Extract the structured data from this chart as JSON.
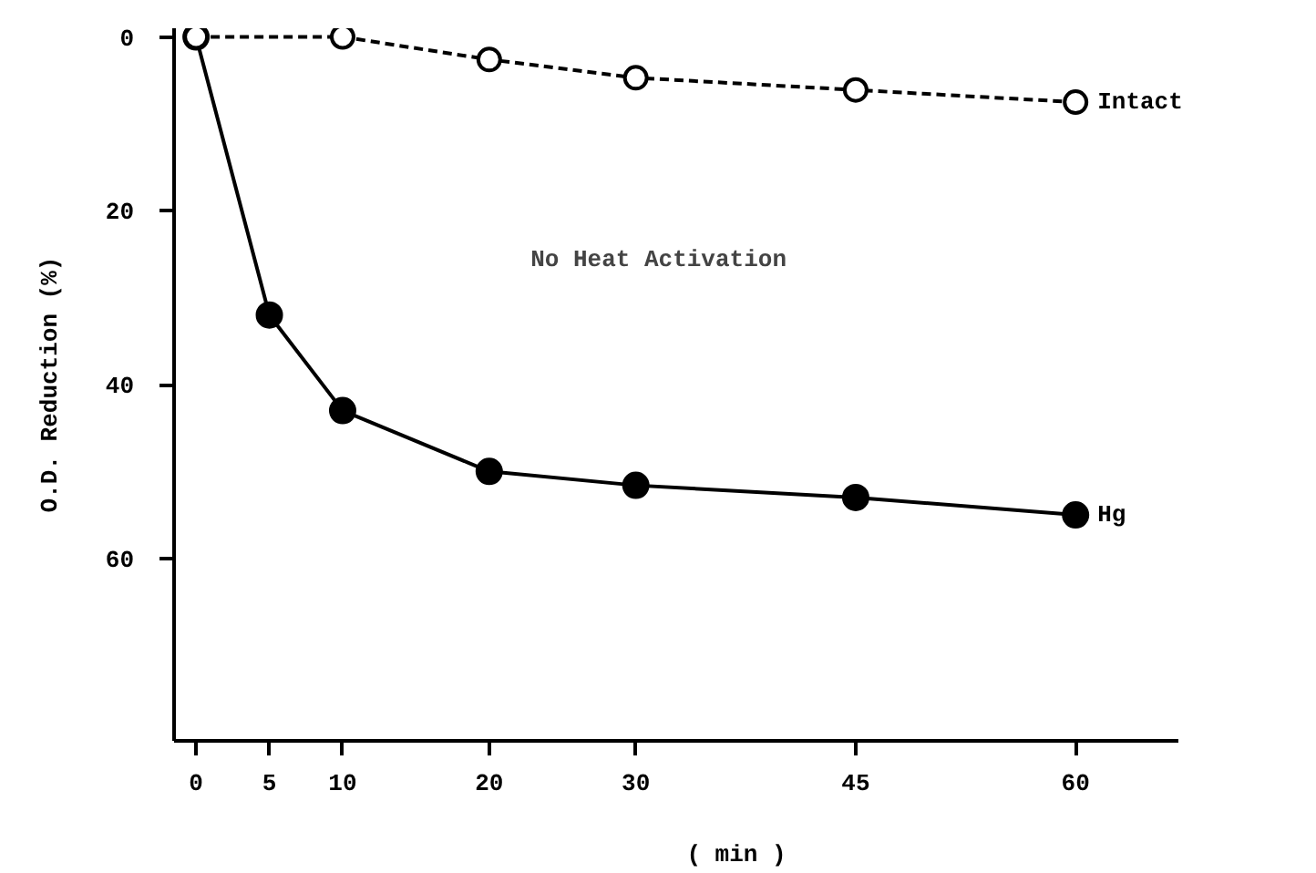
{
  "chart_data": {
    "type": "line",
    "ylabel": "O.D. Reduction (%)",
    "xlabel": "( min )",
    "x": [
      0,
      5,
      10,
      20,
      30,
      45,
      60
    ],
    "series": [
      {
        "name": "Hg",
        "color": "#000000",
        "values": [
          0,
          32,
          43,
          50,
          51.6,
          53,
          55
        ],
        "marker": "circle",
        "line_style": "solid"
      },
      {
        "name": "Intact",
        "color": "#000000",
        "values": [
          0,
          0,
          2.6,
          4.7,
          6.1,
          7.5
        ],
        "x": [
          0,
          10,
          20,
          30,
          45,
          60
        ],
        "marker": "circle",
        "line_style": "dashed"
      }
    ],
    "annotations": [
      "No Heat Activation"
    ],
    "xlim": [
      -1.5,
      67
    ],
    "ylim": [
      81,
      -1
    ],
    "xticks": [
      0,
      5,
      10,
      20,
      30,
      45,
      60
    ],
    "yticks": [
      0,
      20,
      40,
      60
    ],
    "grid": false
  }
}
